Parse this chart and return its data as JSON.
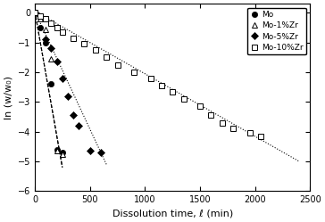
{
  "title": "",
  "xlabel": "Dissolution time, ℓ (min)",
  "ylabel": "ln (w/w₀)",
  "xlim": [
    0,
    2500
  ],
  "ylim": [
    -6,
    0.3
  ],
  "yticks": [
    0,
    -1,
    -2,
    -3,
    -4,
    -5,
    -6
  ],
  "xticks": [
    0,
    500,
    1000,
    1500,
    2000,
    2500
  ],
  "Mo_x": [
    0,
    50,
    100,
    150,
    200,
    250
  ],
  "Mo_y": [
    0,
    -0.5,
    -1.0,
    -2.4,
    -4.6,
    -4.7
  ],
  "Mo1Zr_x": [
    0,
    50,
    100,
    150,
    200,
    250
  ],
  "Mo1Zr_y": [
    0,
    -0.2,
    -0.55,
    -1.55,
    -4.65,
    -4.75
  ],
  "Mo5Zr_x": [
    0,
    100,
    150,
    200,
    250,
    300,
    350,
    400,
    500,
    600
  ],
  "Mo5Zr_y": [
    0,
    -0.9,
    -1.2,
    -1.65,
    -2.2,
    -2.8,
    -3.45,
    -3.8,
    -4.65,
    -4.7
  ],
  "Mo10Zr_x": [
    0,
    50,
    100,
    150,
    200,
    250,
    350,
    450,
    550,
    650,
    750,
    900,
    1050,
    1150,
    1250,
    1350,
    1500,
    1600,
    1700,
    1800,
    1950,
    2050
  ],
  "Mo10Zr_y": [
    0,
    -0.1,
    -0.2,
    -0.35,
    -0.5,
    -0.65,
    -0.85,
    -1.05,
    -1.25,
    -1.5,
    -1.75,
    -2.0,
    -2.2,
    -2.45,
    -2.65,
    -2.9,
    -3.15,
    -3.45,
    -3.7,
    -3.9,
    -4.05,
    -4.15
  ],
  "Mo_fit_x": [
    0,
    250
  ],
  "Mo_fit_y": [
    0.05,
    -5.2
  ],
  "Mo1Zr_fit_x": [
    0,
    250
  ],
  "Mo1Zr_fit_y": [
    0.05,
    -5.2
  ],
  "Mo5Zr_fit_x": [
    0,
    650
  ],
  "Mo5Zr_fit_y": [
    0.05,
    -5.1
  ],
  "Mo10Zr_fit_x": [
    0,
    2400
  ],
  "Mo10Zr_fit_y": [
    0.05,
    -5.0
  ]
}
